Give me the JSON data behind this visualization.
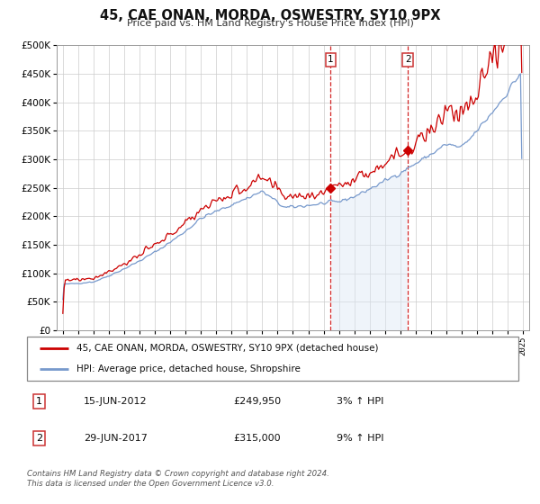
{
  "title": "45, CAE ONAN, MORDA, OSWESTRY, SY10 9PX",
  "subtitle": "Price paid vs. HM Land Registry's House Price Index (HPI)",
  "legend_entry1": "45, CAE ONAN, MORDA, OSWESTRY, SY10 9PX (detached house)",
  "legend_entry2": "HPI: Average price, detached house, Shropshire",
  "red_color": "#cc0000",
  "blue_color": "#7799cc",
  "blue_fill": "#dde8f5",
  "annotation1_date": 2012.46,
  "annotation2_date": 2017.49,
  "annotation1_label": "1",
  "annotation2_label": "2",
  "annotation1_price": 249950,
  "annotation2_price": 315000,
  "annotation1_text": "15-JUN-2012",
  "annotation1_pct": "3% ↑ HPI",
  "annotation2_text": "29-JUN-2017",
  "annotation2_pct": "9% ↑ HPI",
  "footer_line1": "Contains HM Land Registry data © Crown copyright and database right 2024.",
  "footer_line2": "This data is licensed under the Open Government Licence v3.0.",
  "ylim_max": 500000,
  "ylim_min": 0,
  "xmin": 1994.6,
  "xmax": 2025.4
}
